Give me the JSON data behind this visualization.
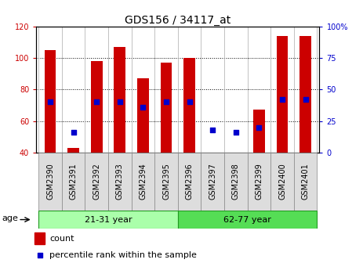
{
  "title": "GDS156 / 34117_at",
  "samples": [
    "GSM2390",
    "GSM2391",
    "GSM2392",
    "GSM2393",
    "GSM2394",
    "GSM2395",
    "GSM2396",
    "GSM2397",
    "GSM2398",
    "GSM2399",
    "GSM2400",
    "GSM2401"
  ],
  "count_values": [
    105,
    43,
    98,
    107,
    87,
    97,
    100,
    40,
    40,
    67,
    114,
    114
  ],
  "percentile_values": [
    40,
    16,
    40,
    40,
    36,
    40,
    40,
    18,
    16,
    20,
    42,
    42
  ],
  "ylim_left": [
    40,
    120
  ],
  "ylim_right": [
    0,
    100
  ],
  "yticks_left": [
    40,
    60,
    80,
    100,
    120
  ],
  "yticks_right": [
    0,
    25,
    50,
    75,
    100
  ],
  "yticklabels_right": [
    "0",
    "25",
    "50",
    "75",
    "100%"
  ],
  "bar_color": "#cc0000",
  "dot_color": "#0000cc",
  "bar_width": 0.5,
  "group1_label": "21-31 year",
  "group2_label": "62-77 year",
  "group1_indices": [
    0,
    1,
    2,
    3,
    4,
    5
  ],
  "group2_indices": [
    6,
    7,
    8,
    9,
    10,
    11
  ],
  "group1_color": "#aaffaa",
  "group2_color": "#55dd55",
  "age_label": "age",
  "legend_count_label": "count",
  "legend_percentile_label": "percentile rank within the sample",
  "title_fontsize": 10,
  "tick_fontsize": 7,
  "axis_label_color_left": "#cc0000",
  "axis_label_color_right": "#0000cc",
  "bg_color": "#f0f0f0"
}
